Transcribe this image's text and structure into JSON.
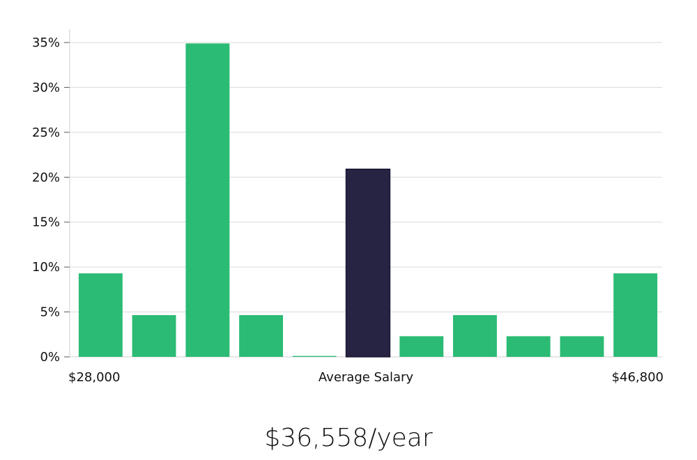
{
  "chart_data": {
    "type": "bar",
    "xlabel": "Average Salary",
    "x_min_label": "$28,000",
    "x_max_label": "$46,800",
    "y_ticks": [
      "0%",
      "5%",
      "10%",
      "15%",
      "20%",
      "25%",
      "30%",
      "35%"
    ],
    "ylim": [
      0,
      36.5
    ],
    "values": [
      9.3,
      4.65,
      34.9,
      4.65,
      0.1,
      20.9,
      2.3,
      4.65,
      2.3,
      2.3,
      9.3
    ],
    "highlight_index": 5,
    "grid": true
  },
  "summary": {
    "average_salary": "$36,558/year"
  },
  "colors": {
    "bar": "#2bbb74",
    "highlight": "#272343",
    "grid": "#d9d9d9",
    "axis": "#cccccc"
  }
}
